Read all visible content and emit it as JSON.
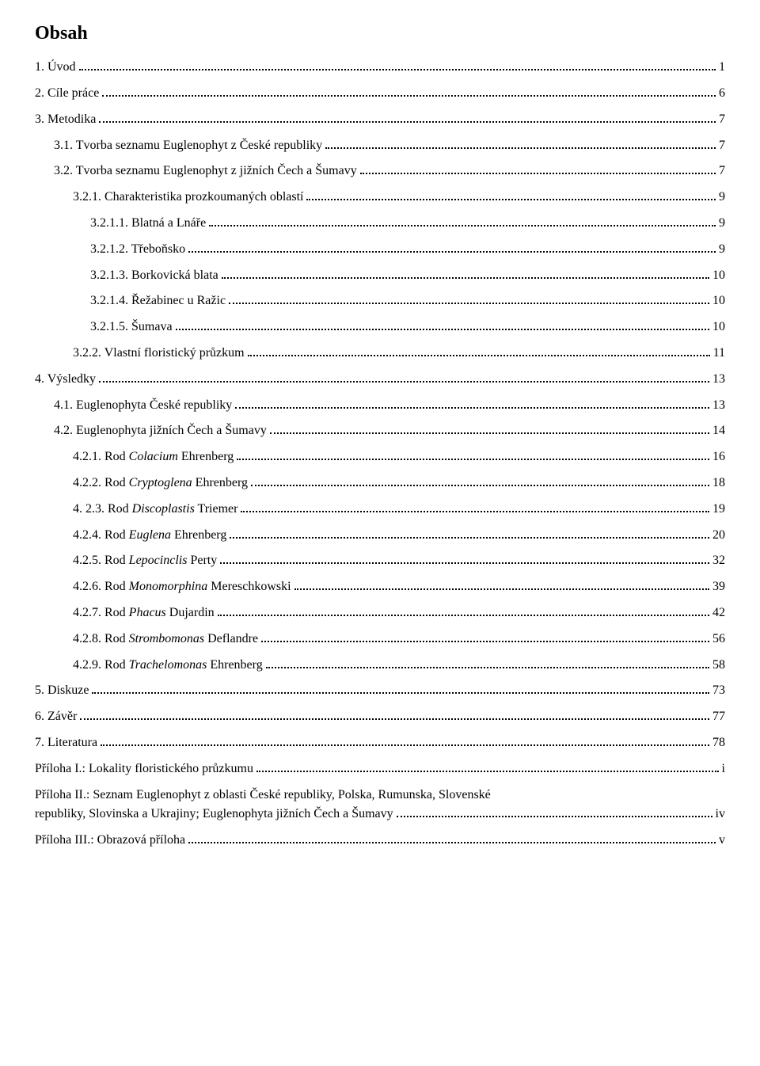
{
  "heading": "Obsah",
  "entries": [
    {
      "indent": 0,
      "label": "1. Úvod",
      "page": "1"
    },
    {
      "indent": 0,
      "label": "2. Cíle práce",
      "page": "6"
    },
    {
      "indent": 0,
      "label": "3. Metodika",
      "page": "7"
    },
    {
      "indent": 1,
      "label": "3.1. Tvorba seznamu Euglenophyt z České republiky",
      "page": "7"
    },
    {
      "indent": 1,
      "label": "3.2. Tvorba seznamu Euglenophyt z jižních Čech a Šumavy",
      "page": "7"
    },
    {
      "indent": 2,
      "label": "3.2.1. Charakteristika prozkoumaných oblastí",
      "page": "9"
    },
    {
      "indent": 3,
      "label": "3.2.1.1. Blatná a Lnáře",
      "page": "9"
    },
    {
      "indent": 3,
      "label": "3.2.1.2. Třeboňsko",
      "page": "9"
    },
    {
      "indent": 3,
      "label": "3.2.1.3. Borkovická blata",
      "page": "10"
    },
    {
      "indent": 3,
      "label": "3.2.1.4. Řežabinec u Ražic",
      "page": "10"
    },
    {
      "indent": 3,
      "label": "3.2.1.5. Šumava",
      "page": "10"
    },
    {
      "indent": 2,
      "label": "3.2.2. Vlastní floristický průzkum",
      "page": "11"
    },
    {
      "indent": 0,
      "label": "4. Výsledky",
      "page": "13"
    },
    {
      "indent": 1,
      "label": "4.1. Euglenophyta České republiky",
      "page": "13"
    },
    {
      "indent": 1,
      "label": "4.2. Euglenophyta jižních Čech a Šumavy",
      "page": "14"
    },
    {
      "indent": 2,
      "labelParts": [
        {
          "t": "4.2.1. Rod "
        },
        {
          "t": "Colacium",
          "i": true
        },
        {
          "t": " Ehrenberg"
        }
      ],
      "page": "16"
    },
    {
      "indent": 2,
      "labelParts": [
        {
          "t": "4.2.2. Rod "
        },
        {
          "t": "Cryptoglena",
          "i": true
        },
        {
          "t": " Ehrenberg"
        }
      ],
      "page": "18"
    },
    {
      "indent": 2,
      "labelParts": [
        {
          "t": "4. 2.3. Rod "
        },
        {
          "t": "Discoplastis",
          "i": true
        },
        {
          "t": " Triemer"
        }
      ],
      "page": "19"
    },
    {
      "indent": 2,
      "labelParts": [
        {
          "t": "4.2.4. Rod "
        },
        {
          "t": "Euglena",
          "i": true
        },
        {
          "t": " Ehrenberg"
        }
      ],
      "page": "20"
    },
    {
      "indent": 2,
      "labelParts": [
        {
          "t": "4.2.5. Rod "
        },
        {
          "t": "Lepocinclis",
          "i": true
        },
        {
          "t": " Perty"
        }
      ],
      "page": "32"
    },
    {
      "indent": 2,
      "labelParts": [
        {
          "t": "4.2.6. Rod "
        },
        {
          "t": "Monomorphina",
          "i": true
        },
        {
          "t": " Mereschkowski"
        }
      ],
      "page": "39"
    },
    {
      "indent": 2,
      "labelParts": [
        {
          "t": "4.2.7. Rod "
        },
        {
          "t": "Phacus",
          "i": true
        },
        {
          "t": " Dujardin"
        }
      ],
      "page": "42"
    },
    {
      "indent": 2,
      "labelParts": [
        {
          "t": "4.2.8. Rod "
        },
        {
          "t": "Strombomonas",
          "i": true
        },
        {
          "t": " Deflandre"
        }
      ],
      "page": "56"
    },
    {
      "indent": 2,
      "labelParts": [
        {
          "t": "4.2.9. Rod "
        },
        {
          "t": "Trachelomonas",
          "i": true
        },
        {
          "t": " Ehrenberg"
        }
      ],
      "page": "58"
    },
    {
      "indent": 0,
      "label": "5. Diskuze",
      "page": "73"
    },
    {
      "indent": 0,
      "label": "6. Závěr",
      "page": "77"
    },
    {
      "indent": 0,
      "label": "7. Literatura",
      "page": "78"
    },
    {
      "indent": 0,
      "label": "Příloha I.: Lokality floristického průzkumu",
      "page": "i"
    }
  ],
  "paragraph": "Příloha II.: Seznam Euglenophyt z oblasti České republiky, Polska, Rumunska, Slovenské republiky, Slovinska a Ukrajiny; Euglenophyta jižních Čech a Šumavy",
  "paragraph_page": "iv",
  "lastEntry": {
    "label": "Příloha III.: Obrazová příloha",
    "page": "v"
  }
}
